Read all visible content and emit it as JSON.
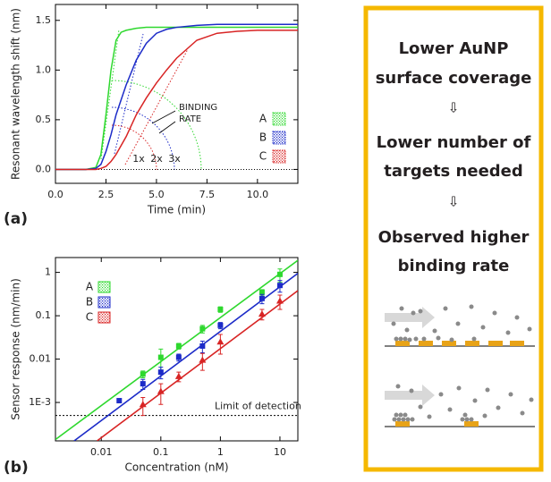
{
  "chart_data": [
    {
      "type": "line",
      "panel_label": "(a)",
      "x_label": "Time (min)",
      "y_label": "Resonant wavelength shift (nm)",
      "x": [
        0,
        1,
        1.5,
        2,
        2.25,
        2.5,
        2.75,
        3,
        3.25,
        3.5,
        4,
        4.5,
        5,
        5.5,
        6,
        7,
        8,
        9,
        10,
        11,
        12
      ],
      "series": [
        {
          "name": "A",
          "color": "#2ed82e",
          "values": [
            0,
            0,
            0,
            0.02,
            0.15,
            0.55,
            1.0,
            1.3,
            1.38,
            1.4,
            1.42,
            1.43,
            1.43,
            1.43,
            1.43,
            1.43,
            1.43,
            1.43,
            1.43,
            1.43,
            1.43
          ]
        },
        {
          "name": "B",
          "color": "#1c2bc8",
          "values": [
            0,
            0,
            0,
            0.01,
            0.05,
            0.18,
            0.35,
            0.55,
            0.7,
            0.85,
            1.1,
            1.27,
            1.37,
            1.41,
            1.43,
            1.45,
            1.46,
            1.46,
            1.46,
            1.46,
            1.46
          ]
        },
        {
          "name": "C",
          "color": "#d82424",
          "values": [
            0,
            0,
            0,
            0,
            0.01,
            0.03,
            0.08,
            0.15,
            0.24,
            0.33,
            0.55,
            0.72,
            0.87,
            1.0,
            1.12,
            1.3,
            1.37,
            1.39,
            1.4,
            1.4,
            1.4
          ]
        }
      ],
      "xlim": [
        0,
        12
      ],
      "xticks": [
        {
          "value": 0,
          "label": "0.0"
        },
        {
          "value": 2.5,
          "label": "2.5"
        },
        {
          "value": 5,
          "label": "5.0"
        },
        {
          "value": 7.5,
          "label": "7.5"
        },
        {
          "value": 10,
          "label": "10.0"
        }
      ],
      "ylim": [
        -0.14,
        1.66
      ],
      "yticks": [
        {
          "value": 0,
          "label": "0.0"
        },
        {
          "value": 0.5,
          "label": "0.5"
        },
        {
          "value": 1,
          "label": "1.0"
        },
        {
          "value": 1.5,
          "label": "1.5"
        }
      ],
      "baseline": true,
      "annotation": [
        "BINDING",
        "RATE"
      ],
      "arc_labels": [
        "1x",
        "2x",
        "3x"
      ]
    },
    {
      "type": "scatter",
      "panel_label": "(b)",
      "x_label": "Concentration (nM)",
      "y_label": "Sensor response (nm/min)",
      "xscale": "log",
      "yscale": "log",
      "series": [
        {
          "name": "A",
          "color": "#2ed82e",
          "marker": "square",
          "x": [
            0.05,
            0.1,
            0.2,
            0.5,
            1,
            5,
            10
          ],
          "values": [
            0.0045,
            0.011,
            0.02,
            0.05,
            0.14,
            0.35,
            0.9
          ],
          "errors": [
            0.0008,
            0.006,
            0.003,
            0.01,
            0.02,
            0.05,
            0.3
          ],
          "fit_x": [
            0.0017,
            20
          ],
          "fit_values": [
            0.00014,
            1.9
          ]
        },
        {
          "name": "B",
          "color": "#1c2bc8",
          "marker": "square",
          "x": [
            0.02,
            0.05,
            0.1,
            0.2,
            0.5,
            1,
            5,
            10
          ],
          "values": [
            0.0011,
            0.0027,
            0.005,
            0.011,
            0.02,
            0.06,
            0.25,
            0.5
          ],
          "errors": [
            0.0001,
            0.0007,
            0.0015,
            0.002,
            0.006,
            0.01,
            0.06,
            0.15
          ],
          "fit_x": [
            0.0035,
            20
          ],
          "fit_values": [
            0.00013,
            0.95
          ]
        },
        {
          "name": "C",
          "color": "#d82424",
          "marker": "triangle",
          "x": [
            0.05,
            0.1,
            0.2,
            0.5,
            1,
            5,
            10
          ],
          "values": [
            0.0009,
            0.0018,
            0.004,
            0.0095,
            0.025,
            0.11,
            0.22
          ],
          "errors": [
            0.0004,
            0.0009,
            0.001,
            0.004,
            0.012,
            0.03,
            0.08
          ],
          "fit_x": [
            0.0085,
            20
          ],
          "fit_values": [
            0.00013,
            0.38
          ]
        }
      ],
      "xlim": [
        0.0017,
        20
      ],
      "xticks": [
        0.01,
        0.1,
        1,
        10
      ],
      "ylim": [
        0.00013,
        2.2
      ],
      "yticks": [
        {
          "value": 0.001,
          "label": "1E-3"
        },
        0.01,
        0.1,
        1
      ],
      "limit_of_detection": {
        "value": 0.0005,
        "label": "Limit of detection"
      }
    }
  ],
  "panel": {
    "lines": [
      "Lower AuNP",
      "surface coverage",
      "⇩",
      "Lower number of",
      "targets needed",
      "⇩",
      "Observed higher",
      "binding rate"
    ]
  }
}
